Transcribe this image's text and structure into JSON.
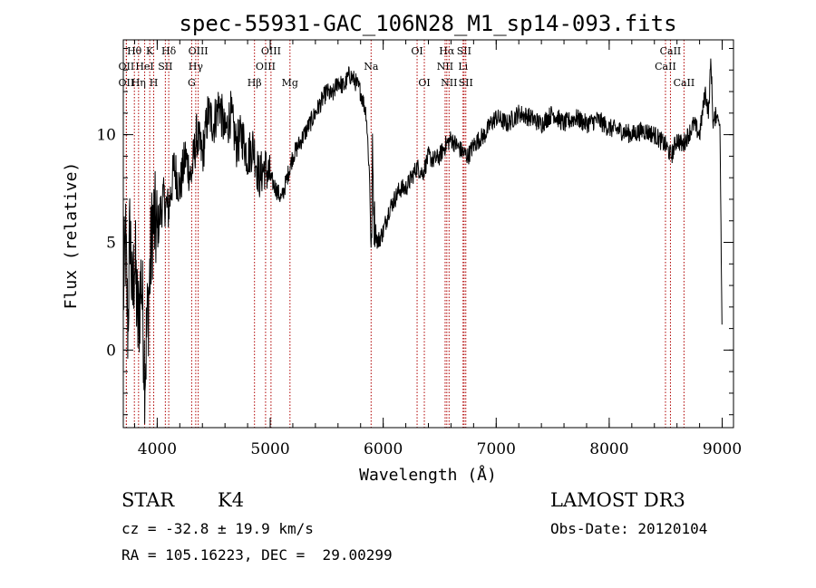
{
  "chart_data": {
    "type": "line",
    "title": "spec-55931-GAC_106N28_M1_sp14-093.fits",
    "xlabel": "Wavelength (Å)",
    "ylabel": "Flux (relative)",
    "xlim": [
      3700,
      9100
    ],
    "ylim": [
      -3.6,
      14.4
    ],
    "x_ticks": [
      4000,
      5000,
      6000,
      7000,
      8000,
      9000
    ],
    "x_tick_labels": [
      "4000",
      "5000",
      "6000",
      "7000",
      "8000",
      "9000"
    ],
    "y_ticks": [
      0,
      5,
      10
    ],
    "y_tick_labels": [
      "0",
      "5",
      "10"
    ],
    "grid": false,
    "legend": "none",
    "series": [
      {
        "name": "flux",
        "x": [
          3700,
          3720,
          3740,
          3760,
          3780,
          3800,
          3830,
          3860,
          3890,
          3930,
          3960,
          4000,
          4050,
          4100,
          4150,
          4200,
          4250,
          4300,
          4350,
          4400,
          4450,
          4500,
          4550,
          4600,
          4650,
          4700,
          4750,
          4800,
          4850,
          4900,
          4950,
          5000,
          5050,
          5100,
          5150,
          5200,
          5250,
          5300,
          5350,
          5400,
          5450,
          5500,
          5550,
          5600,
          5650,
          5700,
          5750,
          5800,
          5850,
          5880,
          5895,
          5905,
          5920,
          5950,
          6000,
          6050,
          6100,
          6150,
          6200,
          6250,
          6300,
          6350,
          6400,
          6450,
          6500,
          6550,
          6600,
          6650,
          6700,
          6750,
          6800,
          6850,
          6900,
          6950,
          7000,
          7100,
          7200,
          7300,
          7400,
          7500,
          7600,
          7700,
          7800,
          7900,
          8000,
          8100,
          8200,
          8300,
          8400,
          8500,
          8550,
          8600,
          8650,
          8700,
          8750,
          8800,
          8850,
          8880,
          8900,
          8920,
          8950,
          8980,
          9000
        ],
        "y": [
          2.5,
          5.0,
          1.0,
          6.0,
          2.0,
          4.5,
          1.0,
          3.5,
          -1.0,
          3.0,
          6.0,
          5.5,
          7.0,
          6.5,
          8.5,
          7.5,
          9.0,
          8.0,
          10.0,
          9.0,
          11.0,
          10.5,
          11.5,
          10.0,
          11.0,
          9.5,
          10.0,
          9.0,
          9.5,
          8.0,
          8.5,
          8.0,
          7.5,
          7.0,
          8.0,
          9.0,
          9.5,
          10.0,
          10.5,
          11.0,
          11.5,
          12.0,
          11.8,
          12.5,
          12.2,
          12.8,
          12.5,
          12.0,
          11.0,
          8.0,
          4.0,
          9.0,
          6.0,
          5.0,
          5.5,
          6.5,
          7.0,
          7.5,
          7.5,
          8.0,
          8.5,
          8.2,
          9.0,
          8.8,
          9.0,
          9.5,
          9.8,
          9.5,
          9.2,
          9.0,
          9.5,
          9.8,
          10.0,
          10.5,
          10.8,
          10.5,
          11.0,
          10.8,
          10.5,
          11.0,
          10.5,
          10.8,
          10.5,
          10.7,
          10.3,
          10.2,
          10.0,
          10.2,
          10.0,
          9.5,
          9.0,
          9.8,
          9.5,
          10.0,
          10.5,
          10.0,
          12.0,
          11.0,
          13.5,
          10.5,
          11.0,
          10.5,
          0.0
        ]
      }
    ],
    "annotations": [
      {
        "label": "Hθ",
        "wavelength": 3798,
        "row": 1
      },
      {
        "label": "OII",
        "wavelength": 3727,
        "row": 2
      },
      {
        "label": "OII",
        "wavelength": 3727,
        "row": 3
      },
      {
        "label": "HeI",
        "wavelength": 3889,
        "row": 2
      },
      {
        "label": "Hη",
        "wavelength": 3835,
        "row": 3
      },
      {
        "label": "K",
        "wavelength": 3934,
        "row": 1
      },
      {
        "label": "H",
        "wavelength": 3969,
        "row": 3
      },
      {
        "label": "SII",
        "wavelength": 4072,
        "row": 2
      },
      {
        "label": "Hδ",
        "wavelength": 4102,
        "row": 1
      },
      {
        "label": "OIII",
        "wavelength": 4363,
        "row": 1
      },
      {
        "label": "Hγ",
        "wavelength": 4341,
        "row": 2
      },
      {
        "label": "G",
        "wavelength": 4305,
        "row": 3
      },
      {
        "label": "OIII",
        "wavelength": 5007,
        "row": 1
      },
      {
        "label": "OIII",
        "wavelength": 4959,
        "row": 2
      },
      {
        "label": "Hβ",
        "wavelength": 4861,
        "row": 3
      },
      {
        "label": "Mg",
        "wavelength": 5175,
        "row": 3
      },
      {
        "label": "Na",
        "wavelength": 5893,
        "row": 2
      },
      {
        "label": "OI",
        "wavelength": 6300,
        "row": 1
      },
      {
        "label": "OI",
        "wavelength": 6364,
        "row": 3
      },
      {
        "label": "Hα",
        "wavelength": 6563,
        "row": 1
      },
      {
        "label": "NII",
        "wavelength": 6548,
        "row": 2
      },
      {
        "label": "NII",
        "wavelength": 6583,
        "row": 3
      },
      {
        "label": "SII",
        "wavelength": 6716,
        "row": 1
      },
      {
        "label": "Li",
        "wavelength": 6707,
        "row": 2
      },
      {
        "label": "SII",
        "wavelength": 6731,
        "row": 3
      },
      {
        "label": "CaII",
        "wavelength": 8542,
        "row": 1
      },
      {
        "label": "CaII",
        "wavelength": 8498,
        "row": 2
      },
      {
        "label": "CaII",
        "wavelength": 8662,
        "row": 3
      }
    ]
  },
  "info": {
    "class": "STAR",
    "subclass": "K4",
    "cz": "cz = -32.8 ± 19.9 km/s",
    "coords": "RA = 105.16223, DEC =  29.00299",
    "survey": "LAMOST DR3",
    "obs_date": "Obs-Date: 20120104"
  }
}
